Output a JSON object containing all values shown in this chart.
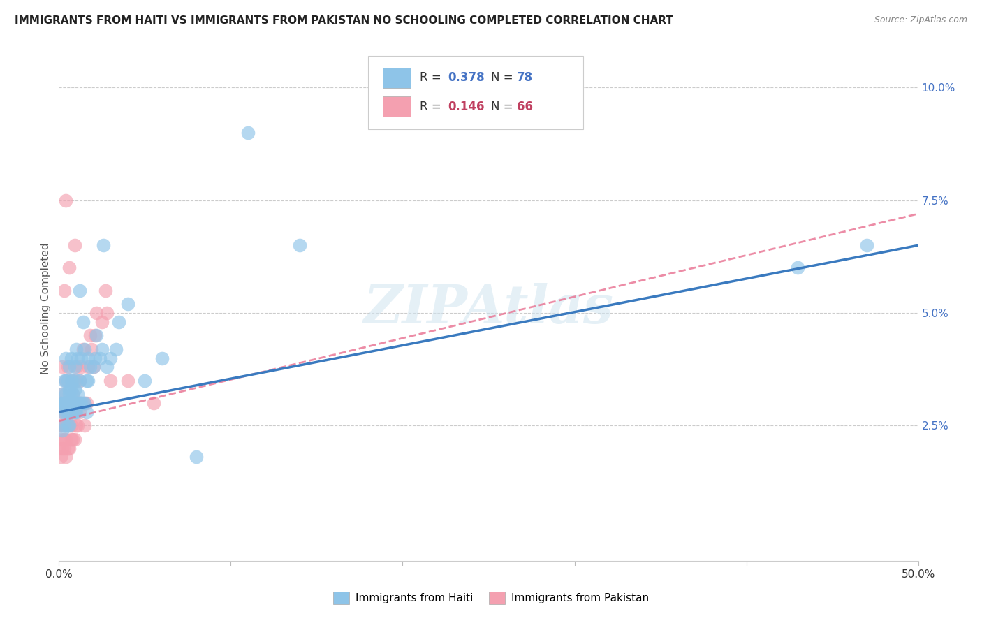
{
  "title": "IMMIGRANTS FROM HAITI VS IMMIGRANTS FROM PAKISTAN NO SCHOOLING COMPLETED CORRELATION CHART",
  "source": "Source: ZipAtlas.com",
  "ylabel": "No Schooling Completed",
  "yticks": [
    0.025,
    0.05,
    0.075,
    0.1
  ],
  "ytick_labels": [
    "2.5%",
    "5.0%",
    "7.5%",
    "10.0%"
  ],
  "xlim": [
    0.0,
    0.5
  ],
  "ylim": [
    -0.005,
    0.107
  ],
  "haiti_color": "#8ec4e8",
  "pakistan_color": "#f4a0b0",
  "haiti_line_color": "#3a7abf",
  "pakistan_line_color": "#e87090",
  "haiti_R": 0.378,
  "haiti_N": 78,
  "pakistan_R": 0.146,
  "pakistan_N": 66,
  "watermark": "ZIPAtlas",
  "haiti_scatter_x": [
    0.001,
    0.002,
    0.002,
    0.002,
    0.003,
    0.003,
    0.003,
    0.003,
    0.003,
    0.004,
    0.004,
    0.004,
    0.004,
    0.004,
    0.005,
    0.005,
    0.005,
    0.005,
    0.005,
    0.006,
    0.006,
    0.006,
    0.006,
    0.006,
    0.006,
    0.007,
    0.007,
    0.007,
    0.007,
    0.007,
    0.007,
    0.008,
    0.008,
    0.008,
    0.008,
    0.009,
    0.009,
    0.009,
    0.009,
    0.01,
    0.01,
    0.01,
    0.01,
    0.011,
    0.011,
    0.011,
    0.012,
    0.012,
    0.012,
    0.013,
    0.013,
    0.014,
    0.014,
    0.015,
    0.015,
    0.016,
    0.016,
    0.017,
    0.017,
    0.018,
    0.02,
    0.021,
    0.022,
    0.024,
    0.025,
    0.026,
    0.028,
    0.03,
    0.033,
    0.035,
    0.04,
    0.05,
    0.06,
    0.08,
    0.11,
    0.14,
    0.43,
    0.47
  ],
  "haiti_scatter_y": [
    0.03,
    0.024,
    0.028,
    0.032,
    0.025,
    0.03,
    0.03,
    0.035,
    0.03,
    0.028,
    0.03,
    0.032,
    0.035,
    0.04,
    0.025,
    0.028,
    0.03,
    0.03,
    0.035,
    0.025,
    0.028,
    0.03,
    0.032,
    0.033,
    0.038,
    0.028,
    0.028,
    0.03,
    0.033,
    0.035,
    0.04,
    0.028,
    0.03,
    0.032,
    0.035,
    0.028,
    0.03,
    0.033,
    0.038,
    0.028,
    0.03,
    0.035,
    0.042,
    0.03,
    0.032,
    0.04,
    0.03,
    0.035,
    0.055,
    0.03,
    0.04,
    0.03,
    0.048,
    0.03,
    0.042,
    0.028,
    0.035,
    0.035,
    0.04,
    0.038,
    0.038,
    0.04,
    0.045,
    0.04,
    0.042,
    0.065,
    0.038,
    0.04,
    0.042,
    0.048,
    0.052,
    0.035,
    0.04,
    0.018,
    0.09,
    0.065,
    0.06,
    0.065
  ],
  "pakistan_scatter_x": [
    0.0,
    0.0,
    0.001,
    0.001,
    0.001,
    0.001,
    0.002,
    0.002,
    0.002,
    0.002,
    0.002,
    0.003,
    0.003,
    0.003,
    0.003,
    0.003,
    0.004,
    0.004,
    0.004,
    0.004,
    0.004,
    0.004,
    0.005,
    0.005,
    0.005,
    0.005,
    0.006,
    0.006,
    0.006,
    0.006,
    0.007,
    0.007,
    0.007,
    0.007,
    0.008,
    0.008,
    0.008,
    0.009,
    0.009,
    0.009,
    0.009,
    0.01,
    0.01,
    0.01,
    0.011,
    0.011,
    0.012,
    0.012,
    0.013,
    0.013,
    0.014,
    0.015,
    0.015,
    0.016,
    0.017,
    0.018,
    0.019,
    0.02,
    0.021,
    0.022,
    0.025,
    0.027,
    0.028,
    0.03,
    0.04,
    0.055
  ],
  "pakistan_scatter_y": [
    0.02,
    0.025,
    0.018,
    0.022,
    0.025,
    0.03,
    0.02,
    0.025,
    0.028,
    0.032,
    0.038,
    0.02,
    0.022,
    0.028,
    0.03,
    0.055,
    0.018,
    0.022,
    0.025,
    0.03,
    0.035,
    0.075,
    0.02,
    0.025,
    0.03,
    0.038,
    0.02,
    0.025,
    0.03,
    0.06,
    0.022,
    0.025,
    0.03,
    0.035,
    0.022,
    0.028,
    0.032,
    0.022,
    0.028,
    0.035,
    0.065,
    0.025,
    0.03,
    0.038,
    0.025,
    0.03,
    0.028,
    0.035,
    0.03,
    0.038,
    0.042,
    0.025,
    0.03,
    0.03,
    0.038,
    0.045,
    0.042,
    0.038,
    0.045,
    0.05,
    0.048,
    0.055,
    0.05,
    0.035,
    0.035,
    0.03
  ]
}
